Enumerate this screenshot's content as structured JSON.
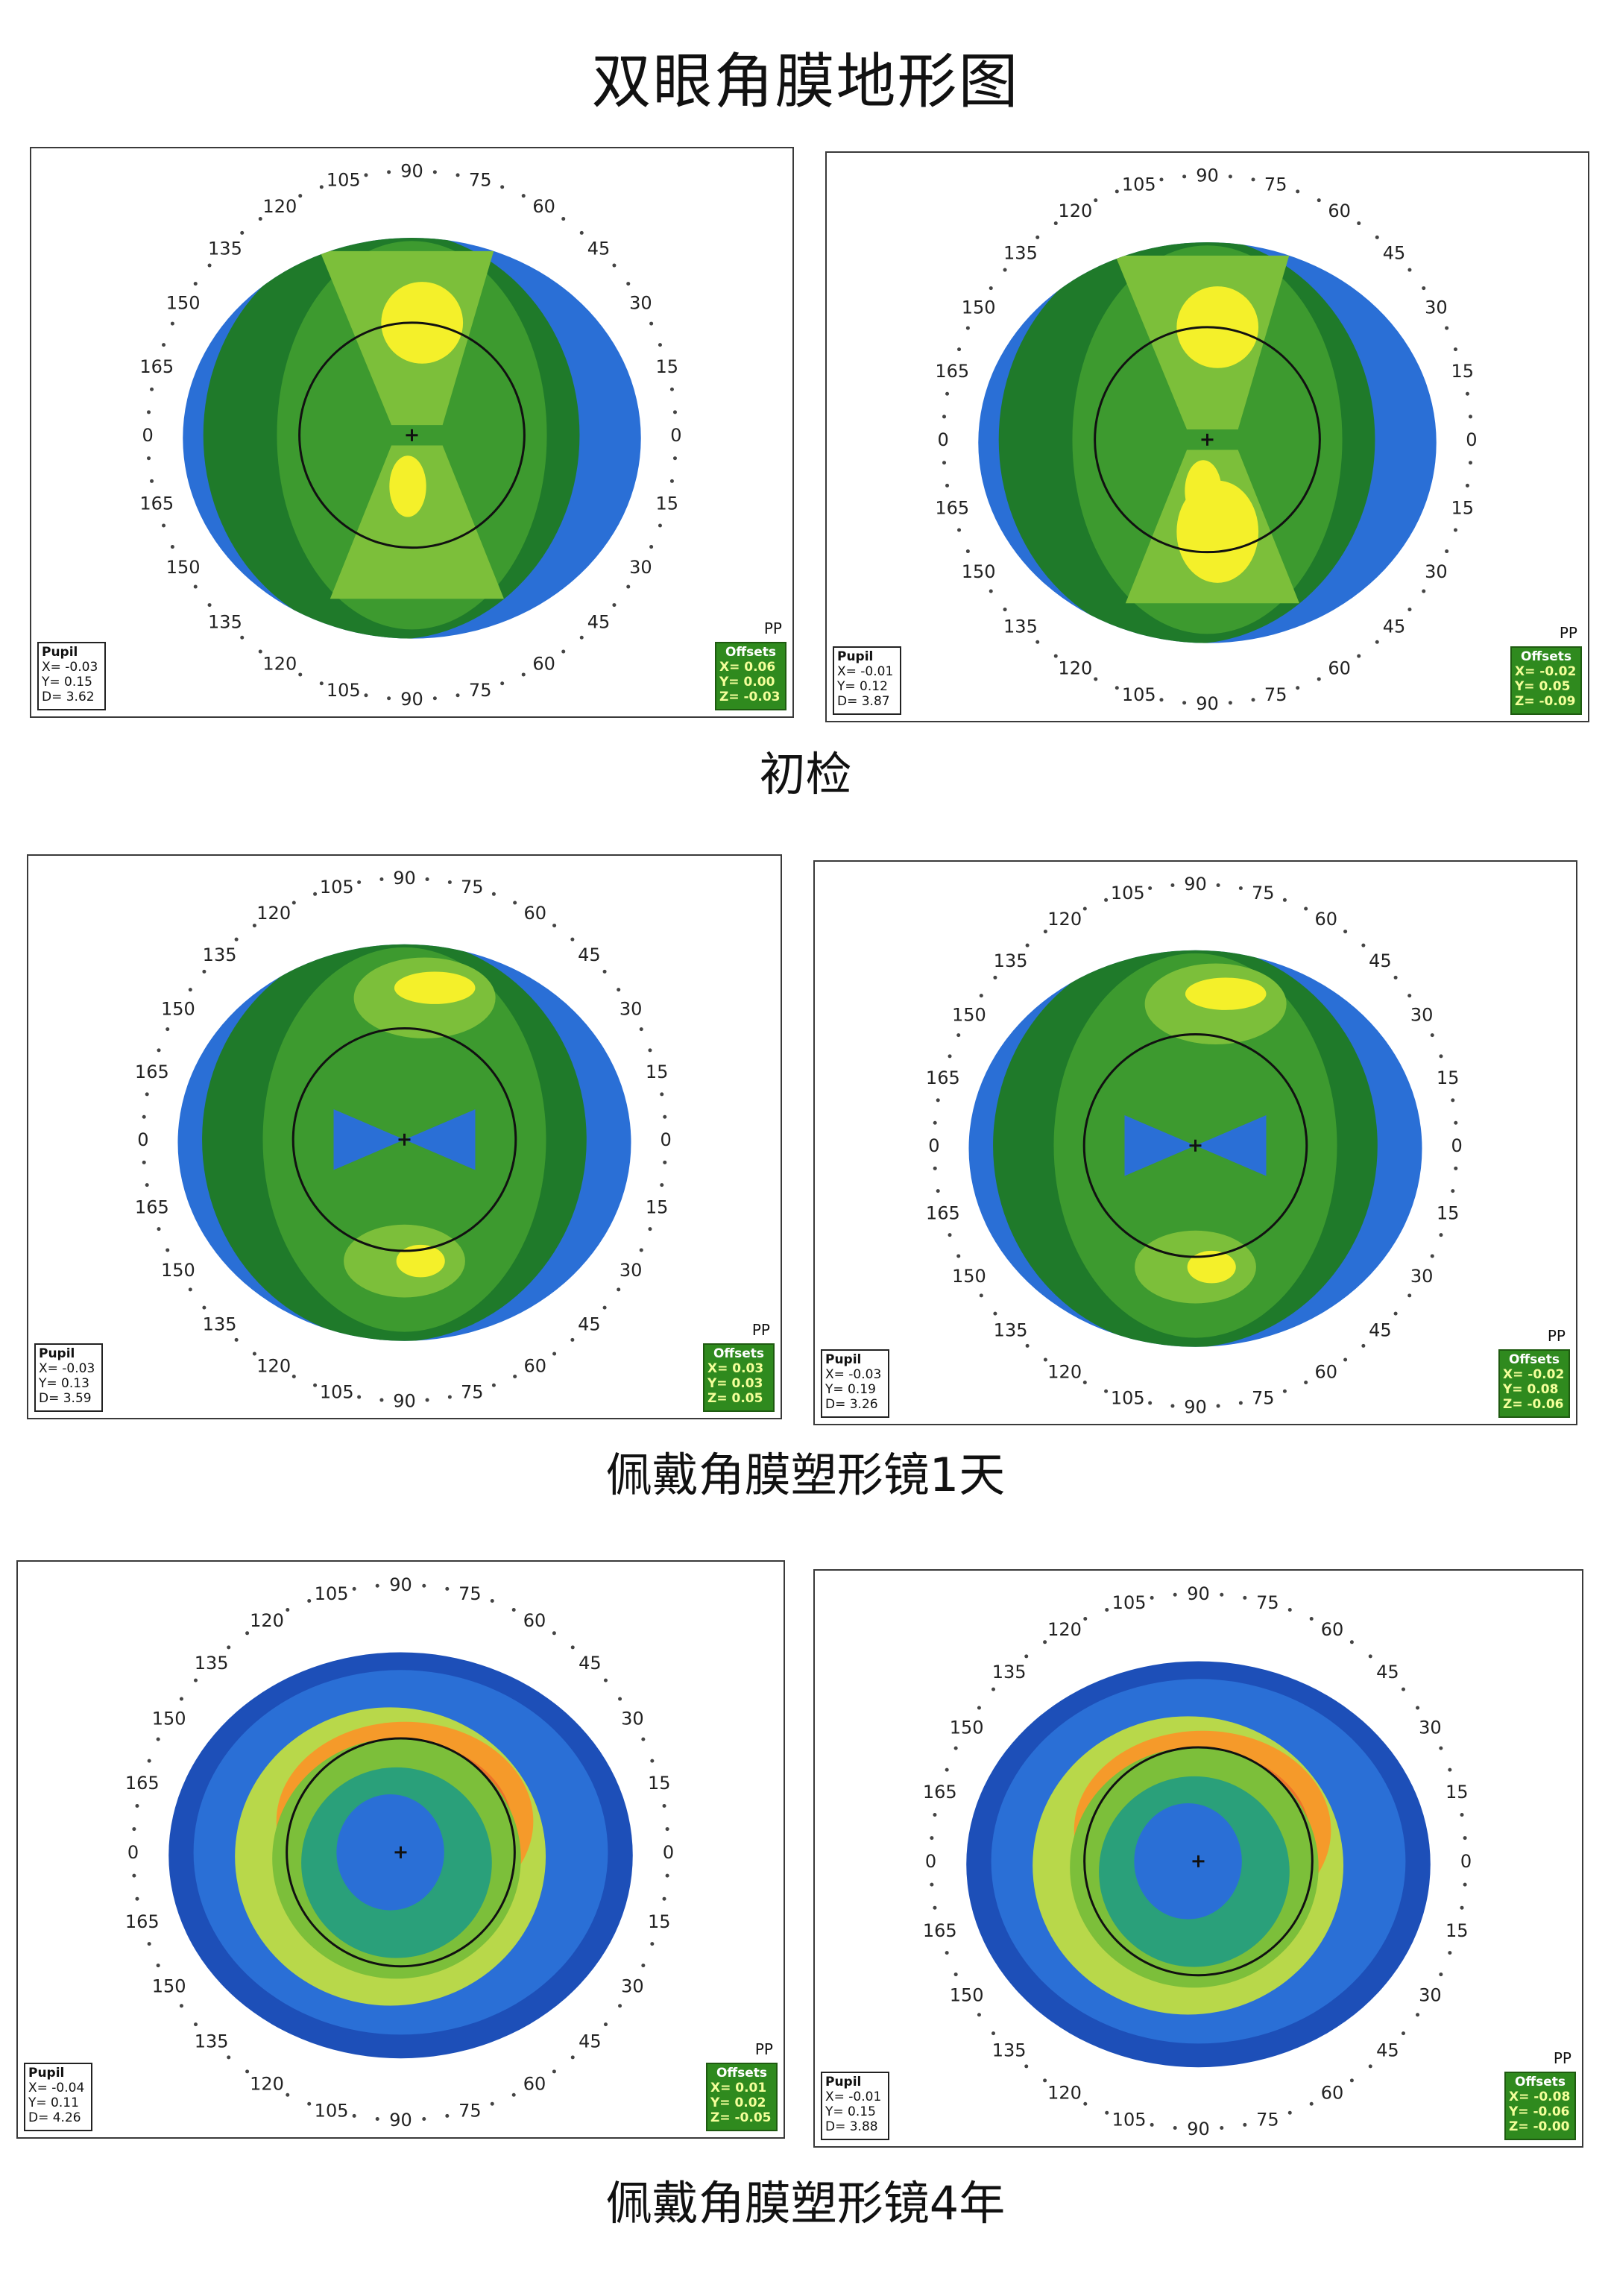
{
  "title": "双眼角膜地形图",
  "rows": [
    {
      "caption": "初检"
    },
    {
      "caption": "佩戴角膜塑形镜1天"
    },
    {
      "caption": "佩戴角膜塑形镜4年"
    }
  ],
  "degree_labels": [
    "0",
    "15",
    "30",
    "45",
    "60",
    "75",
    "90",
    "105",
    "120",
    "135",
    "150",
    "165",
    "0",
    "165",
    "150",
    "135",
    "120",
    "105",
    "90",
    "75",
    "60",
    "45",
    "30",
    "15"
  ],
  "corner_label": "PP",
  "pupil_header": "Pupil",
  "offsets_header": "Offsets",
  "maps": [
    {
      "pupil": {
        "x": "X= -0.03",
        "y": "Y=  0.15",
        "d": "D=  3.62"
      },
      "offsets": {
        "x": "X=  0.06",
        "y": "Y=  0.00",
        "z": "Z= -0.03"
      }
    },
    {
      "pupil": {
        "x": "X= -0.01",
        "y": "Y=  0.12",
        "d": "D=  3.87"
      },
      "offsets": {
        "x": "X= -0.02",
        "y": "Y=  0.05",
        "z": "Z= -0.09"
      }
    },
    {
      "pupil": {
        "x": "X= -0.03",
        "y": "Y=  0.13",
        "d": "D=  3.59"
      },
      "offsets": {
        "x": "X=  0.03",
        "y": "Y=  0.03",
        "z": "Z=  0.05"
      }
    },
    {
      "pupil": {
        "x": "X= -0.03",
        "y": "Y=  0.19",
        "d": "D=  3.26"
      },
      "offsets": {
        "x": "X= -0.02",
        "y": "Y=  0.08",
        "z": "Z= -0.06"
      }
    },
    {
      "pupil": {
        "x": "X= -0.04",
        "y": "Y=  0.11",
        "d": "D=  4.26"
      },
      "offsets": {
        "x": "X=  0.01",
        "y": "Y=  0.02",
        "z": "Z= -0.05"
      }
    },
    {
      "pupil": {
        "x": "X= -0.01",
        "y": "Y=  0.15",
        "d": "D=  3.88"
      },
      "offsets": {
        "x": "X= -0.08",
        "y": "Y= -0.06",
        "z": "Z= -0.00"
      }
    }
  ],
  "colors": {
    "dark_blue": "#1d4fb8",
    "blue": "#2a6fd6",
    "dark_green": "#1f7a2a",
    "green": "#3d9a2f",
    "light_green": "#7cbf3a",
    "yellow_green": "#b8d84a",
    "yellow": "#f4f02a",
    "orange": "#f59a2a",
    "red_orange": "#e8562a",
    "teal": "#2aa07a"
  }
}
